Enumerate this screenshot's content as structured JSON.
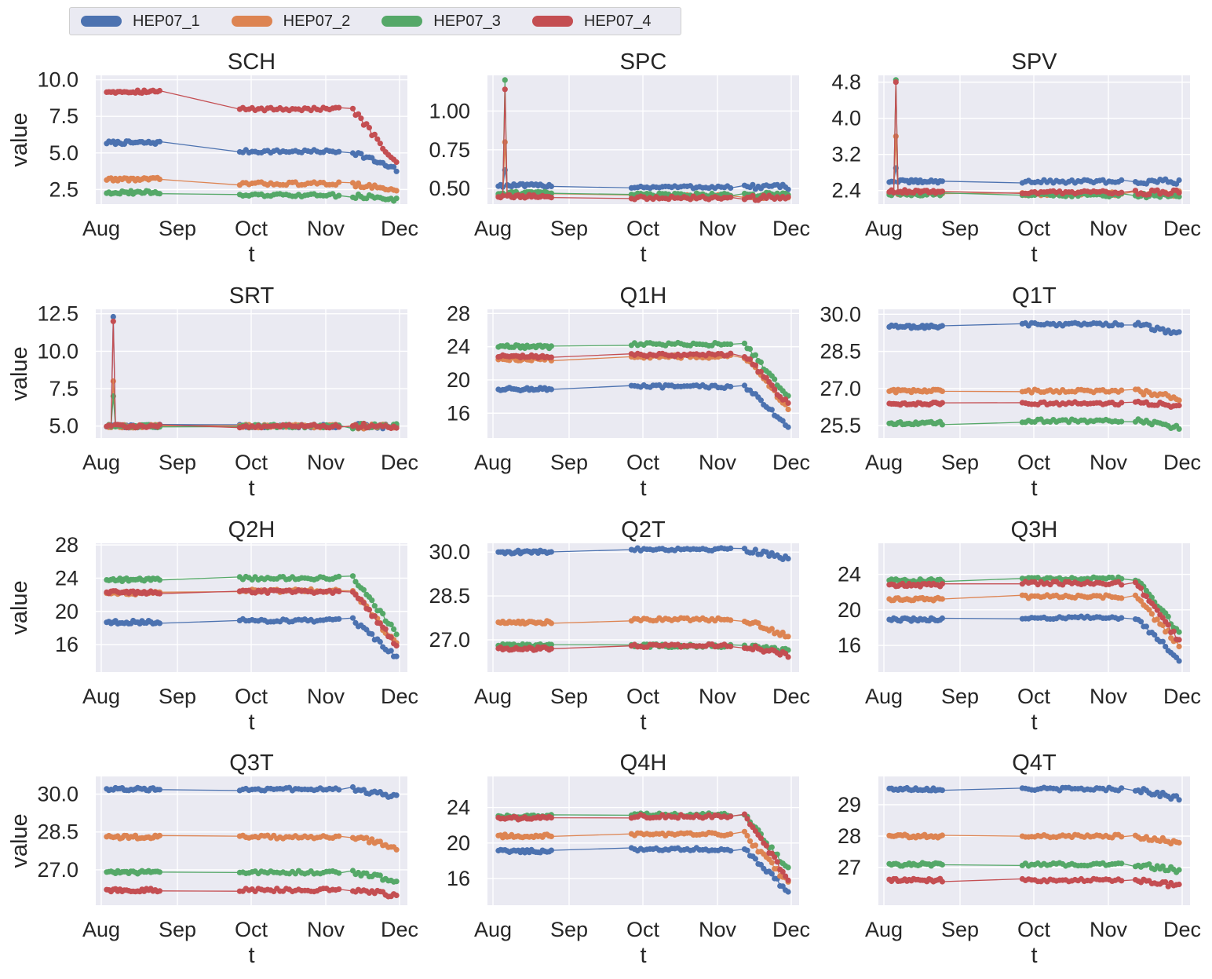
{
  "legend": {
    "items": [
      {
        "label": "HEP07_1",
        "color": "#4c72b0"
      },
      {
        "label": "HEP07_2",
        "color": "#dd8452"
      },
      {
        "label": "HEP07_3",
        "color": "#55a868"
      },
      {
        "label": "HEP07_4",
        "color": "#c44e52"
      }
    ]
  },
  "chart_data": [
    {
      "type": "line",
      "title": "SCH",
      "xlabel": "t",
      "ylabel": "value",
      "xticks": [
        "Aug",
        "Sep",
        "Oct",
        "Nov",
        "Dec"
      ],
      "yticks": [
        "10.0",
        "7.5",
        "5.0",
        "2.5"
      ],
      "ylim": [
        1.5,
        10.3
      ],
      "grid": true,
      "series": [
        {
          "name": "HEP07_1",
          "level_before": 5.7,
          "level_after": 5.1,
          "end_drop": 3.8
        },
        {
          "name": "HEP07_2",
          "level_before": 3.2,
          "level_after": 2.9,
          "end_drop": 2.4
        },
        {
          "name": "HEP07_3",
          "level_before": 2.3,
          "level_after": 2.1,
          "end_drop": 1.8
        },
        {
          "name": "HEP07_4",
          "level_before": 9.2,
          "level_after": 8.0,
          "end_drop": 4.2
        }
      ]
    },
    {
      "type": "line",
      "title": "SPC",
      "xlabel": "t",
      "ylabel": "",
      "xticks": [
        "Aug",
        "Sep",
        "Oct",
        "Nov",
        "Dec"
      ],
      "yticks": [
        "1.00",
        "0.75",
        "0.50"
      ],
      "ylim": [
        0.4,
        1.23
      ],
      "grid": true,
      "series": [
        {
          "name": "HEP07_1",
          "level_before": 0.52,
          "level_after": 0.51,
          "spike": 0.62
        },
        {
          "name": "HEP07_2",
          "level_before": 0.46,
          "level_after": 0.45,
          "spike": 0.8
        },
        {
          "name": "HEP07_3",
          "level_before": 0.47,
          "level_after": 0.46,
          "spike": 1.2
        },
        {
          "name": "HEP07_4",
          "level_before": 0.45,
          "level_after": 0.44,
          "spike": 1.14
        }
      ]
    },
    {
      "type": "line",
      "title": "SPV",
      "xlabel": "t",
      "ylabel": "",
      "xticks": [
        "Aug",
        "Sep",
        "Oct",
        "Nov",
        "Dec"
      ],
      "yticks": [
        "4.8",
        "4.0",
        "3.2",
        "2.4"
      ],
      "ylim": [
        2.1,
        4.95
      ],
      "grid": true,
      "series": [
        {
          "name": "HEP07_1",
          "level_before": 2.6,
          "level_after": 2.6,
          "spike": 2.9
        },
        {
          "name": "HEP07_2",
          "level_before": 2.35,
          "level_after": 2.33,
          "spike": 3.6
        },
        {
          "name": "HEP07_3",
          "level_before": 2.32,
          "level_after": 2.3,
          "spike": 4.85
        },
        {
          "name": "HEP07_4",
          "level_before": 2.38,
          "level_after": 2.36,
          "spike": 4.8
        }
      ]
    },
    {
      "type": "line",
      "title": "SRT",
      "xlabel": "t",
      "ylabel": "value",
      "xticks": [
        "Aug",
        "Sep",
        "Oct",
        "Nov",
        "Dec"
      ],
      "yticks": [
        "12.5",
        "10.0",
        "7.5",
        "5.0"
      ],
      "ylim": [
        4.2,
        12.8
      ],
      "grid": true,
      "series": [
        {
          "name": "HEP07_1",
          "level_before": 5.0,
          "level_after": 5.0,
          "spike": 12.3
        },
        {
          "name": "HEP07_2",
          "level_before": 5.0,
          "level_after": 5.0,
          "spike": 8.0
        },
        {
          "name": "HEP07_3",
          "level_before": 5.0,
          "level_after": 5.0,
          "spike": 7.0
        },
        {
          "name": "HEP07_4",
          "level_before": 5.0,
          "level_after": 5.0,
          "spike": 12.0
        }
      ]
    },
    {
      "type": "line",
      "title": "Q1H",
      "xlabel": "t",
      "ylabel": "",
      "xticks": [
        "Aug",
        "Sep",
        "Oct",
        "Nov",
        "Dec"
      ],
      "yticks": [
        "28",
        "24",
        "20",
        "16"
      ],
      "ylim": [
        13,
        28.5
      ],
      "grid": true,
      "series": [
        {
          "name": "HEP07_1",
          "level_before": 18.9,
          "level_after": 19.2,
          "end_drop": 14.5
        },
        {
          "name": "HEP07_2",
          "level_before": 22.5,
          "level_after": 22.8,
          "end_drop": 16.5
        },
        {
          "name": "HEP07_3",
          "level_before": 24.0,
          "level_after": 24.3,
          "end_drop": 18.0
        },
        {
          "name": "HEP07_4",
          "level_before": 22.8,
          "level_after": 23.0,
          "end_drop": 17.0
        }
      ]
    },
    {
      "type": "line",
      "title": "Q1T",
      "xlabel": "t",
      "ylabel": "",
      "xticks": [
        "Aug",
        "Sep",
        "Oct",
        "Nov",
        "Dec"
      ],
      "yticks": [
        "30.0",
        "28.5",
        "27.0",
        "25.5"
      ],
      "ylim": [
        25.0,
        30.2
      ],
      "grid": true,
      "series": [
        {
          "name": "HEP07_1",
          "level_before": 29.5,
          "level_after": 29.6,
          "end_drop": 29.2
        },
        {
          "name": "HEP07_2",
          "level_before": 26.9,
          "level_after": 26.9,
          "end_drop": 26.6
        },
        {
          "name": "HEP07_3",
          "level_before": 25.6,
          "level_after": 25.7,
          "end_drop": 25.4
        },
        {
          "name": "HEP07_4",
          "level_before": 26.4,
          "level_after": 26.4,
          "end_drop": 26.3
        }
      ]
    },
    {
      "type": "line",
      "title": "Q2H",
      "xlabel": "t",
      "ylabel": "value",
      "xticks": [
        "Aug",
        "Sep",
        "Oct",
        "Nov",
        "Dec"
      ],
      "yticks": [
        "28",
        "24",
        "20",
        "16"
      ],
      "ylim": [
        12.7,
        28.2
      ],
      "grid": true,
      "series": [
        {
          "name": "HEP07_1",
          "level_before": 18.7,
          "level_after": 18.9,
          "end_drop": 14.5
        },
        {
          "name": "HEP07_2",
          "level_before": 22.2,
          "level_after": 22.5,
          "end_drop": 16.0
        },
        {
          "name": "HEP07_3",
          "level_before": 23.8,
          "level_after": 24.0,
          "end_drop": 17.5
        },
        {
          "name": "HEP07_4",
          "level_before": 22.3,
          "level_after": 22.4,
          "end_drop": 16.0
        }
      ]
    },
    {
      "type": "line",
      "title": "Q2T",
      "xlabel": "t",
      "ylabel": "",
      "xticks": [
        "Aug",
        "Sep",
        "Oct",
        "Nov",
        "Dec"
      ],
      "yticks": [
        "30.0",
        "28.5",
        "27.0"
      ],
      "ylim": [
        25.9,
        30.3
      ],
      "grid": true,
      "series": [
        {
          "name": "HEP07_1",
          "level_before": 30.0,
          "level_after": 30.1,
          "end_drop": 29.8
        },
        {
          "name": "HEP07_2",
          "level_before": 27.6,
          "level_after": 27.7,
          "end_drop": 27.1
        },
        {
          "name": "HEP07_3",
          "level_before": 26.8,
          "level_after": 26.8,
          "end_drop": 26.6
        },
        {
          "name": "HEP07_4",
          "level_before": 26.7,
          "level_after": 26.8,
          "end_drop": 26.5
        }
      ]
    },
    {
      "type": "line",
      "title": "Q3H",
      "xlabel": "t",
      "ylabel": "",
      "xticks": [
        "Aug",
        "Sep",
        "Oct",
        "Nov",
        "Dec"
      ],
      "yticks": [
        "24",
        "20",
        "16"
      ],
      "ylim": [
        13,
        27.5
      ],
      "grid": true,
      "series": [
        {
          "name": "HEP07_1",
          "level_before": 18.9,
          "level_after": 19.1,
          "end_drop": 14.5
        },
        {
          "name": "HEP07_2",
          "level_before": 21.2,
          "level_after": 21.5,
          "end_drop": 16.0
        },
        {
          "name": "HEP07_3",
          "level_before": 23.3,
          "level_after": 23.5,
          "end_drop": 17.5
        },
        {
          "name": "HEP07_4",
          "level_before": 22.8,
          "level_after": 23.0,
          "end_drop": 16.5
        }
      ]
    },
    {
      "type": "line",
      "title": "Q3T",
      "xlabel": "t",
      "ylabel": "value",
      "xticks": [
        "Aug",
        "Sep",
        "Oct",
        "Nov",
        "Dec"
      ],
      "yticks": [
        "30.0",
        "28.5",
        "27.0"
      ],
      "ylim": [
        25.6,
        30.7
      ],
      "grid": true,
      "series": [
        {
          "name": "HEP07_1",
          "level_before": 30.2,
          "level_after": 30.2,
          "end_drop": 29.9
        },
        {
          "name": "HEP07_2",
          "level_before": 28.3,
          "level_after": 28.3,
          "end_drop": 27.9
        },
        {
          "name": "HEP07_3",
          "level_before": 26.9,
          "level_after": 26.9,
          "end_drop": 26.6
        },
        {
          "name": "HEP07_4",
          "level_before": 26.2,
          "level_after": 26.2,
          "end_drop": 26.0
        }
      ]
    },
    {
      "type": "line",
      "title": "Q4H",
      "xlabel": "t",
      "ylabel": "",
      "xticks": [
        "Aug",
        "Sep",
        "Oct",
        "Nov",
        "Dec"
      ],
      "yticks": [
        "24",
        "20",
        "16"
      ],
      "ylim": [
        13,
        27.5
      ],
      "grid": true,
      "series": [
        {
          "name": "HEP07_1",
          "level_before": 19.1,
          "level_after": 19.3,
          "end_drop": 14.5
        },
        {
          "name": "HEP07_2",
          "level_before": 20.8,
          "level_after": 21.0,
          "end_drop": 15.5
        },
        {
          "name": "HEP07_3",
          "level_before": 23.0,
          "level_after": 23.2,
          "end_drop": 17.0
        },
        {
          "name": "HEP07_4",
          "level_before": 22.8,
          "level_after": 23.0,
          "end_drop": 16.0
        }
      ]
    },
    {
      "type": "line",
      "title": "Q4T",
      "xlabel": "t",
      "ylabel": "",
      "xticks": [
        "Aug",
        "Sep",
        "Oct",
        "Nov",
        "Dec"
      ],
      "yticks": [
        "29",
        "28",
        "27"
      ],
      "ylim": [
        25.8,
        29.9
      ],
      "grid": true,
      "series": [
        {
          "name": "HEP07_1",
          "level_before": 29.5,
          "level_after": 29.5,
          "end_drop": 29.2
        },
        {
          "name": "HEP07_2",
          "level_before": 28.0,
          "level_after": 28.0,
          "end_drop": 27.8
        },
        {
          "name": "HEP07_3",
          "level_before": 27.1,
          "level_after": 27.1,
          "end_drop": 26.9
        },
        {
          "name": "HEP07_4",
          "level_before": 26.6,
          "level_after": 26.6,
          "end_drop": 26.4
        }
      ]
    }
  ]
}
